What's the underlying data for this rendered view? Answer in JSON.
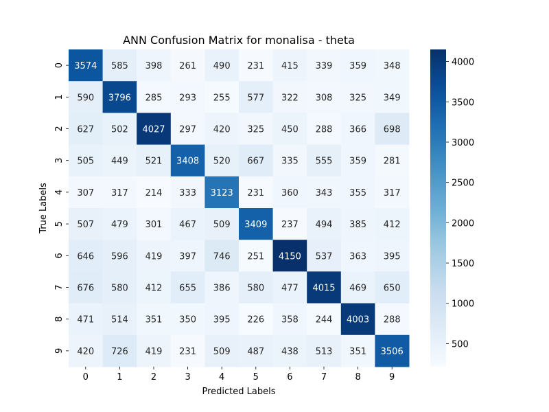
{
  "chart_data": {
    "type": "heatmap",
    "title": "ANN Confusion Matrix for monalisa - theta",
    "xlabel": "Predicted Labels",
    "ylabel": "True Labels",
    "x_categories": [
      "0",
      "1",
      "2",
      "3",
      "4",
      "5",
      "6",
      "7",
      "8",
      "9"
    ],
    "y_categories": [
      "0",
      "1",
      "2",
      "3",
      "4",
      "5",
      "6",
      "7",
      "8",
      "9"
    ],
    "values": [
      [
        3574,
        585,
        398,
        261,
        490,
        231,
        415,
        339,
        359,
        348
      ],
      [
        590,
        3796,
        285,
        293,
        255,
        577,
        322,
        308,
        325,
        349
      ],
      [
        627,
        502,
        4027,
        297,
        420,
        325,
        450,
        288,
        366,
        698
      ],
      [
        505,
        449,
        521,
        3408,
        520,
        667,
        335,
        555,
        359,
        281
      ],
      [
        307,
        317,
        214,
        333,
        3123,
        231,
        360,
        343,
        355,
        317
      ],
      [
        507,
        479,
        301,
        467,
        509,
        3409,
        237,
        494,
        385,
        412
      ],
      [
        646,
        596,
        419,
        397,
        746,
        251,
        4150,
        537,
        363,
        395
      ],
      [
        676,
        580,
        412,
        655,
        386,
        580,
        477,
        4015,
        469,
        650
      ],
      [
        471,
        514,
        351,
        350,
        395,
        226,
        358,
        244,
        4003,
        288
      ],
      [
        420,
        726,
        419,
        231,
        509,
        487,
        438,
        513,
        351,
        3506
      ]
    ],
    "colormap": "Blues",
    "vmin": 214,
    "vmax": 4150,
    "colorbar_ticks": [
      500,
      1000,
      1500,
      2000,
      2500,
      3000,
      3500,
      4000
    ]
  }
}
